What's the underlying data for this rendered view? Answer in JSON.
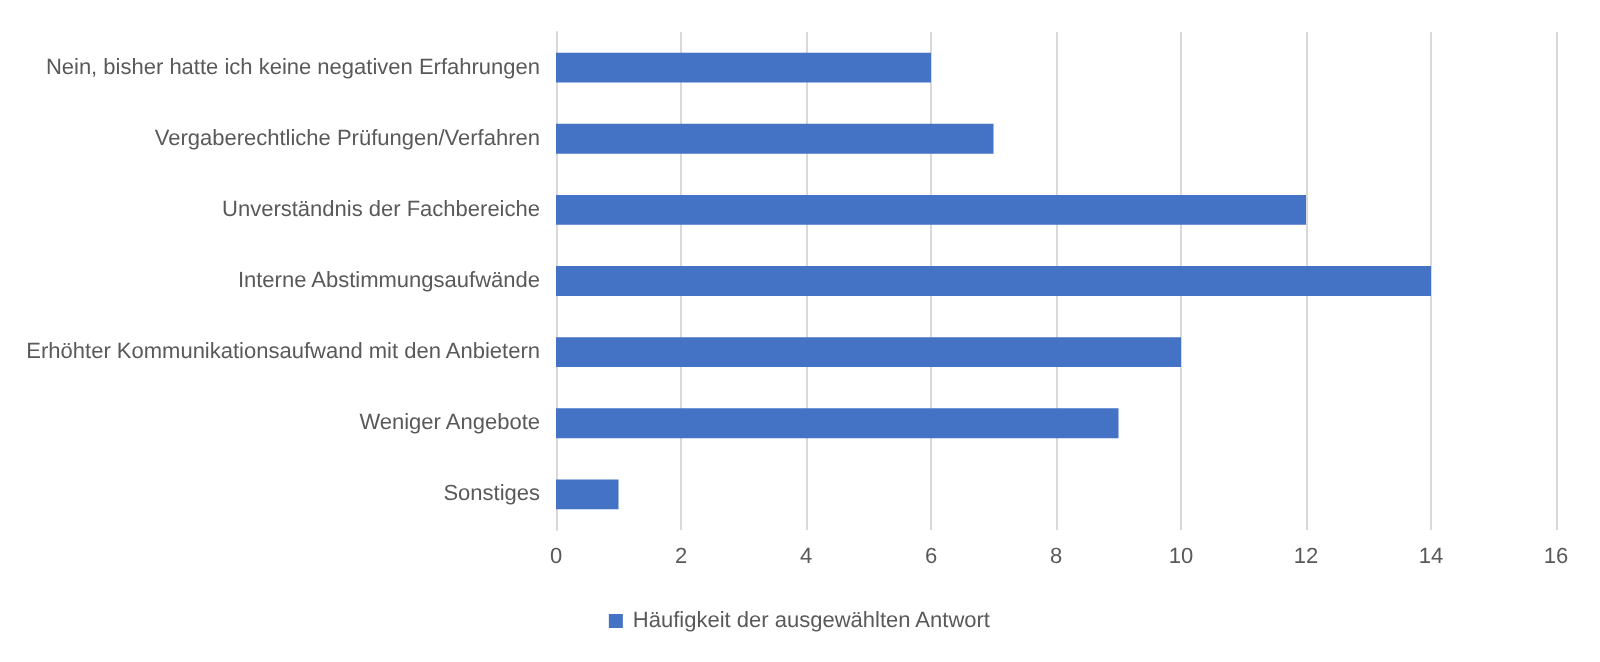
{
  "chart_data": {
    "type": "bar",
    "orientation": "horizontal",
    "categories": [
      "Nein, bisher hatte ich keine negativen Erfahrungen",
      "Vergaberechtliche Prüfungen/Verfahren",
      "Unverständnis der Fachbereiche",
      "Interne Abstimmungsaufwände",
      "Erhöhter Kommunikationsaufwand mit den Anbietern",
      "Weniger Angebote",
      "Sonstiges"
    ],
    "series": [
      {
        "name": "Häufigkeit der ausgewählten Antwort",
        "color": "#4472c4",
        "values": [
          6,
          7,
          12,
          14,
          10,
          9,
          1
        ]
      }
    ],
    "xlim": [
      0,
      16
    ],
    "xticks": [
      0,
      2,
      4,
      6,
      8,
      10,
      12,
      14,
      16
    ],
    "grid": "x",
    "legend": "bottom"
  }
}
